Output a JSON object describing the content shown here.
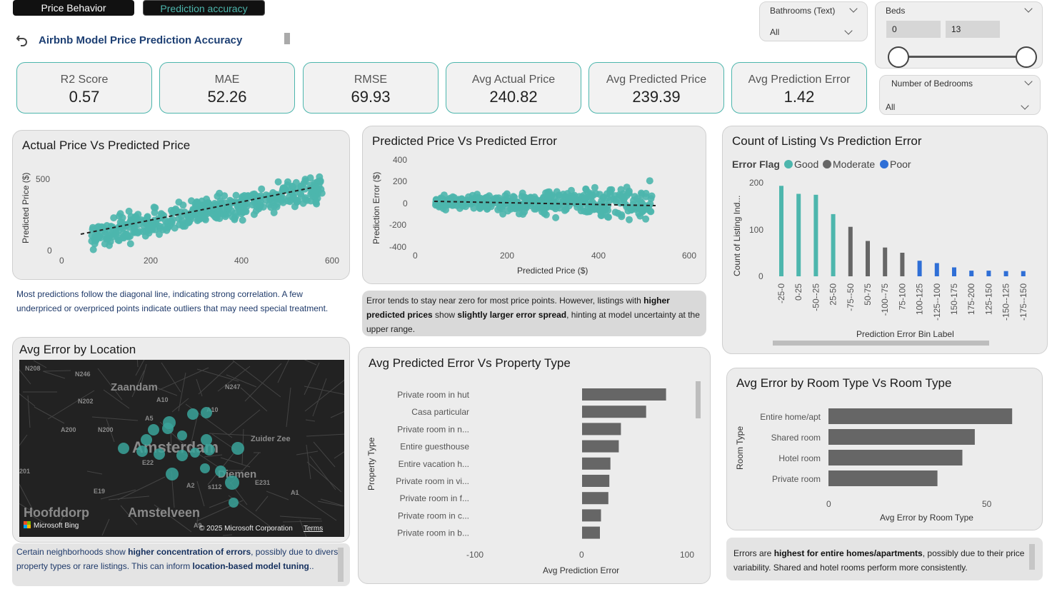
{
  "tabs": [
    {
      "label": "Price Behavior",
      "active": false
    },
    {
      "label": "Prediction accuracy",
      "active": true
    }
  ],
  "page_title": "Airbnb Model Price Prediction Accuracy",
  "kpis": [
    {
      "label": "R2 Score",
      "value": "0.57"
    },
    {
      "label": "MAE",
      "value": "52.26"
    },
    {
      "label": "RMSE",
      "value": "69.93"
    },
    {
      "label": "Avg Actual Price",
      "value": "240.82"
    },
    {
      "label": "Avg Predicted Price",
      "value": "239.39"
    },
    {
      "label": "Avg Prediction Error",
      "value": "1.42"
    }
  ],
  "slicers": {
    "bathrooms": {
      "title": "Bathrooms (Text)",
      "value": "All"
    },
    "beds": {
      "title": "Beds",
      "min": "0",
      "max": "13"
    },
    "bedrooms": {
      "title": "Number of Bedrooms",
      "value": "All"
    }
  },
  "colors": {
    "accent": "#4db6ad",
    "good": "#4db6ad",
    "moderate": "#666666",
    "poor": "#2f6fd6",
    "bar": "#666666"
  },
  "chart1": {
    "title": "Actual Price Vs Predicted Price",
    "ylabel": "Predicted Price ($)",
    "xticks": [
      "0",
      "200",
      "400",
      "600"
    ],
    "yticks": [
      "0",
      "500"
    ]
  },
  "chart2": {
    "title": "Predicted Price Vs Predicted Error",
    "ylabel": "Prediction Error ($)",
    "xlabel": "Predicted Price ($)",
    "xticks": [
      "0",
      "200",
      "400",
      "600"
    ],
    "yticks": [
      "400",
      "200",
      "0",
      "-200",
      "-400"
    ]
  },
  "chart3": {
    "title": "Count of Listing Vs Prediction Error",
    "legend_title": "Error Flag",
    "legend": [
      "Good",
      "Moderate",
      "Poor"
    ],
    "ylabel": "Count of Listing Ind...",
    "xlabel": "Prediction Error Bin Label",
    "yticks": [
      "200",
      "100",
      "0"
    ]
  },
  "chart4": {
    "title": "Avg Predicted Error Vs Property Type",
    "ylabel": "Property Type",
    "xlabel": "Avg Prediction Error",
    "xticks": [
      "-100",
      "0",
      "100"
    ]
  },
  "chart5": {
    "title": "Avg Error by Room Type Vs Room Type",
    "ylabel": "Room Type",
    "xlabel": "Avg Error by Room Type",
    "xticks": [
      "0",
      "50"
    ]
  },
  "map": {
    "title": "Avg Error by Location",
    "labels": [
      "N208",
      "N246",
      "Zaandam",
      "N247",
      "N202",
      "A10",
      "A10",
      "A5",
      "A200",
      "N200",
      "Amsterdam",
      "Zuider Zee",
      "E22",
      "201",
      "Diemen",
      "E231",
      "A2",
      "s112",
      "E19",
      "A1",
      "Hoofddorp",
      "Amstelveen",
      "A9"
    ],
    "bing": "Microsoft Bing",
    "copyright": "© 2025 Microsoft Corporation",
    "terms": "Terms"
  },
  "notes": {
    "n1": "Most predictions follow the diagonal line, indicating strong correlation. A few underpriced or overpriced points indicate outliers that may need special treatment.",
    "n2_a": "Error tends to stay near zero for most price points. However, listings with ",
    "n2_b": "higher predicted prices",
    "n2_c": " show ",
    "n2_d": "slightly larger error spread",
    "n2_e": ", hinting at model uncertainty at the upper range.",
    "n3_a": "Certain neighborhoods show ",
    "n3_b": "higher concentration of errors",
    "n3_c": ", possibly due to diverse property types or rare listings. This can inform ",
    "n3_d": "location-based model tuning",
    "n3_e": "..",
    "n4_a": "Errors are ",
    "n4_b": "highest for entire homes/apartments",
    "n4_c": ", possibly due to their price variability. Shared and hotel rooms perform more consistently."
  },
  "chart_data": [
    {
      "type": "scatter",
      "title": "Actual Price Vs Predicted Price",
      "ylabel": "Predicted Price ($)",
      "xlim": [
        0,
        600
      ],
      "ylim": [
        0,
        600
      ],
      "trendline": {
        "x": [
          40,
          550
        ],
        "y": [
          110,
          430
        ]
      },
      "note": "scatter cloud approx. predicted = 0.55*actual + 90 with spread ±60"
    },
    {
      "type": "scatter",
      "title": "Predicted Price Vs Predicted Error",
      "xlabel": "Predicted Price ($)",
      "ylabel": "Prediction Error ($)",
      "xlim": [
        0,
        600
      ],
      "ylim": [
        -400,
        400
      ],
      "trendline": {
        "x": [
          40,
          530
        ],
        "y": [
          10,
          -20
        ]
      }
    },
    {
      "type": "bar",
      "title": "Count of Listing Vs Prediction Error",
      "xlabel": "Prediction Error Bin Label",
      "categories": [
        "-25-0",
        "0-25",
        "-50--25",
        "25-50",
        "-75--50",
        "50-75",
        "-100--75",
        "75-100",
        "100-125",
        "-125--100",
        "150-175",
        "175-200",
        "125-150",
        "-150--125",
        "-175--150"
      ],
      "values": [
        192,
        175,
        173,
        132,
        105,
        75,
        61,
        50,
        33,
        28,
        19,
        12,
        12,
        11,
        11
      ],
      "flags": [
        "Good",
        "Good",
        "Good",
        "Good",
        "Moderate",
        "Moderate",
        "Moderate",
        "Moderate",
        "Poor",
        "Poor",
        "Poor",
        "Poor",
        "Poor",
        "Poor",
        "Poor"
      ],
      "ylim": [
        0,
        210
      ]
    },
    {
      "type": "bar",
      "title": "Avg Predicted Error Vs Property Type",
      "xlabel": "Avg Prediction Error",
      "ylabel": "Property Type",
      "categories": [
        "Private room in hut",
        "Casa particular",
        "Private room in n...",
        "Entire guesthouse",
        "Entire vacation h...",
        "Private room in vi...",
        "Private room in f...",
        "Private room in c...",
        "Private room in b..."
      ],
      "values": [
        80,
        61,
        37,
        35,
        27,
        26,
        25,
        18,
        17
      ],
      "xlim": [
        -100,
        100
      ]
    },
    {
      "type": "bar",
      "title": "Avg Error by Room Type Vs Room Type",
      "xlabel": "Avg Error by Room Type",
      "ylabel": "Room Type",
      "categories": [
        "Entire home/apt",
        "Shared room",
        "Hotel room",
        "Private room"
      ],
      "values": [
        59,
        47,
        43,
        35
      ],
      "xlim": [
        0,
        65
      ]
    }
  ]
}
